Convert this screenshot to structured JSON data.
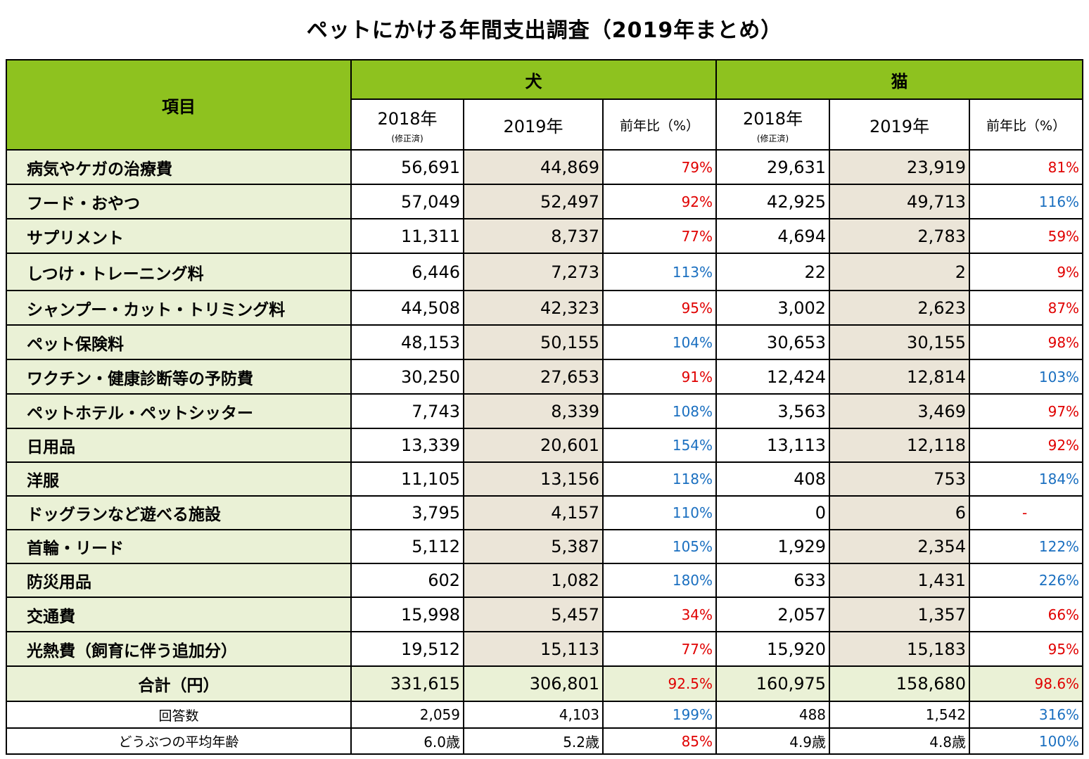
{
  "title": "ペットにかける年間支出調査（2019年まとめ）",
  "header": {
    "item": "項目",
    "dog": "犬",
    "cat": "猫",
    "col_2018": "2018年",
    "col_2018_note": "(修正済)",
    "col_2019": "2019年",
    "col_ratio": "前年比（%）"
  },
  "rows": [
    {
      "label": "病気やケガの治療費",
      "d18": "56,691",
      "d19": "44,869",
      "dr": "79%",
      "drc": "red",
      "c18": "29,631",
      "c19": "23,919",
      "cr": "81%",
      "crc": "red"
    },
    {
      "label": "フード・おやつ",
      "d18": "57,049",
      "d19": "52,497",
      "dr": "92%",
      "drc": "red",
      "c18": "42,925",
      "c19": "49,713",
      "cr": "116%",
      "crc": "blue"
    },
    {
      "label": "サプリメント",
      "d18": "11,311",
      "d19": "8,737",
      "dr": "77%",
      "drc": "red",
      "c18": "4,694",
      "c19": "2,783",
      "cr": "59%",
      "crc": "red"
    },
    {
      "label": "しつけ・トレーニング料",
      "d18": "6,446",
      "d19": "7,273",
      "dr": "113%",
      "drc": "blue",
      "c18": "22",
      "c19": "2",
      "cr": "9%",
      "crc": "red"
    },
    {
      "label": "シャンプー・カット・トリミング料",
      "d18": "44,508",
      "d19": "42,323",
      "dr": "95%",
      "drc": "red",
      "c18": "3,002",
      "c19": "2,623",
      "cr": "87%",
      "crc": "red"
    },
    {
      "label": "ペット保険料",
      "d18": "48,153",
      "d19": "50,155",
      "dr": "104%",
      "drc": "blue",
      "c18": "30,653",
      "c19": "30,155",
      "cr": "98%",
      "crc": "red"
    },
    {
      "label": "ワクチン・健康診断等の予防費",
      "d18": "30,250",
      "d19": "27,653",
      "dr": "91%",
      "drc": "red",
      "c18": "12,424",
      "c19": "12,814",
      "cr": "103%",
      "crc": "blue"
    },
    {
      "label": "ペットホテル・ペットシッター",
      "d18": "7,743",
      "d19": "8,339",
      "dr": "108%",
      "drc": "blue",
      "c18": "3,563",
      "c19": "3,469",
      "cr": "97%",
      "crc": "red"
    },
    {
      "label": "日用品",
      "d18": "13,339",
      "d19": "20,601",
      "dr": "154%",
      "drc": "blue",
      "c18": "13,113",
      "c19": "12,118",
      "cr": "92%",
      "crc": "red"
    },
    {
      "label": "洋服",
      "d18": "11,105",
      "d19": "13,156",
      "dr": "118%",
      "drc": "blue",
      "c18": "408",
      "c19": "753",
      "cr": "184%",
      "crc": "blue"
    },
    {
      "label": "ドッグランなど遊べる施設",
      "d18": "3,795",
      "d19": "4,157",
      "dr": "110%",
      "drc": "blue",
      "c18": "0",
      "c19": "6",
      "cr": "-",
      "crc": "red"
    },
    {
      "label": "首輪・リード",
      "d18": "5,112",
      "d19": "5,387",
      "dr": "105%",
      "drc": "blue",
      "c18": "1,929",
      "c19": "2,354",
      "cr": "122%",
      "crc": "blue"
    },
    {
      "label": "防災用品",
      "d18": "602",
      "d19": "1,082",
      "dr": "180%",
      "drc": "blue",
      "c18": "633",
      "c19": "1,431",
      "cr": "226%",
      "crc": "blue"
    },
    {
      "label": "交通費",
      "d18": "15,998",
      "d19": "5,457",
      "dr": "34%",
      "drc": "red",
      "c18": "2,057",
      "c19": "1,357",
      "cr": "66%",
      "crc": "red"
    },
    {
      "label": "光熱費（飼育に伴う追加分）",
      "d18": "19,512",
      "d19": "15,113",
      "dr": "77%",
      "drc": "red",
      "c18": "15,920",
      "c19": "15,183",
      "cr": "95%",
      "crc": "red"
    }
  ],
  "total": {
    "label": "合計（円）",
    "d18": "331,615",
    "d19": "306,801",
    "dr": "92.5%",
    "drc": "red",
    "c18": "160,975",
    "c19": "158,680",
    "cr": "98.6%",
    "crc": "red"
  },
  "respondents": {
    "label": "回答数",
    "d18": "2,059",
    "d19": "4,103",
    "dr": "199%",
    "drc": "blue",
    "c18": "488",
    "c19": "1,542",
    "cr": "316%",
    "crc": "blue"
  },
  "avg_age": {
    "label": "どうぶつの平均年齢",
    "d18": "6.0歳",
    "d19": "5.2歳",
    "dr": "85%",
    "drc": "red",
    "c18": "4.9歳",
    "c19": "4.8歳",
    "cr": "100%",
    "crc": "blue"
  }
}
